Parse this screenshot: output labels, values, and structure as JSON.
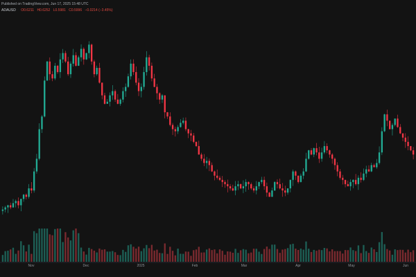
{
  "header": {
    "line1": "Published on TradingView.com, Jun 17, 2025 15:48 UTC",
    "symbol": "ADAUSD",
    "ohlc": [
      "O0.6211",
      "H0.6252",
      "L0.5981",
      "C0.5996",
      "−0.0214 (−3.45%)"
    ]
  },
  "colors": {
    "background": "#131313",
    "up": "#22ab94",
    "down": "#f23645",
    "volume_up": "#1d5f55",
    "volume_down": "#7a2a2f",
    "axis_text": "#8e949a"
  },
  "chart_data": {
    "type": "candlestick",
    "x_labels": [
      "Nov",
      "Dec",
      "2025",
      "Feb",
      "Mar",
      "Apr",
      "May",
      "Jun"
    ],
    "close_path": [
      0.34,
      0.35,
      0.36,
      0.35,
      0.37,
      0.38,
      0.36,
      0.39,
      0.41,
      0.4,
      0.44,
      0.43,
      0.52,
      0.58,
      0.72,
      0.78,
      0.95,
      1.04,
      0.98,
      0.96,
      1.02,
      0.99,
      1.05,
      1.08,
      1.04,
      0.98,
      1.03,
      1.07,
      1.02,
      1.06,
      1.1,
      1.05,
      1.08,
      1.12,
      1.04,
      0.98,
      1.01,
      0.94,
      0.88,
      0.84,
      0.85,
      0.88,
      0.9,
      0.86,
      0.84,
      0.86,
      0.9,
      0.92,
      0.97,
      1.03,
      0.99,
      0.94,
      0.9,
      0.92,
      0.99,
      1.06,
      1.02,
      0.96,
      0.92,
      0.89,
      0.86,
      0.88,
      0.8,
      0.78,
      0.74,
      0.72,
      0.71,
      0.73,
      0.75,
      0.76,
      0.72,
      0.7,
      0.69,
      0.66,
      0.64,
      0.6,
      0.58,
      0.56,
      0.57,
      0.55,
      0.52,
      0.5,
      0.49,
      0.48,
      0.47,
      0.46,
      0.45,
      0.44,
      0.43,
      0.45,
      0.46,
      0.44,
      0.45,
      0.47,
      0.46,
      0.44,
      0.43,
      0.45,
      0.47,
      0.48,
      0.45,
      0.42,
      0.4,
      0.43,
      0.47,
      0.46,
      0.44,
      0.43,
      0.42,
      0.44,
      0.48,
      0.52,
      0.5,
      0.47,
      0.5,
      0.52,
      0.58,
      0.62,
      0.6,
      0.63,
      0.61,
      0.58,
      0.61,
      0.64,
      0.62,
      0.6,
      0.58,
      0.55,
      0.52,
      0.49,
      0.48,
      0.46,
      0.45,
      0.47,
      0.48,
      0.46,
      0.49,
      0.48,
      0.51,
      0.53,
      0.52,
      0.55,
      0.54,
      0.56,
      0.61,
      0.71,
      0.79,
      0.76,
      0.72,
      0.74,
      0.77,
      0.73,
      0.7,
      0.68,
      0.66,
      0.64,
      0.62,
      0.6
    ],
    "price_range": [
      0.25,
      1.2
    ]
  }
}
